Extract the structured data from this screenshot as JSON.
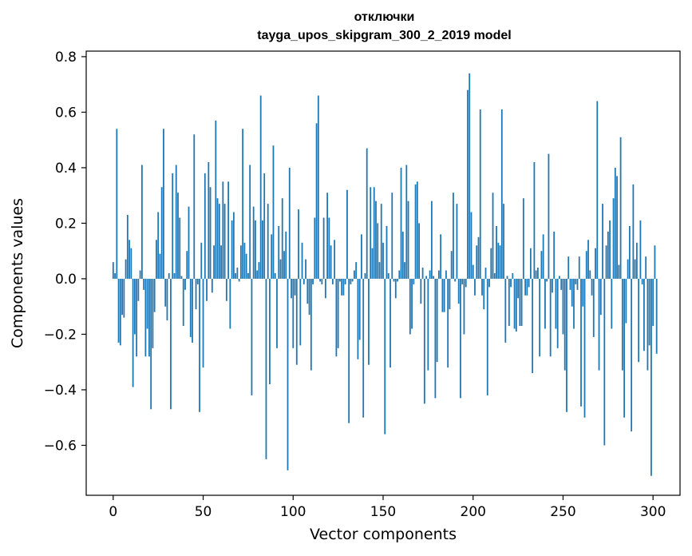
{
  "chart_data": {
    "type": "bar",
    "title": [
      "отключки",
      "tayga_upos_skipgram_300_2_2019 model"
    ],
    "xlabel": "Vector components",
    "ylabel": "Components values",
    "xlim": [
      -15,
      315
    ],
    "ylim": [
      -0.78,
      0.82
    ],
    "xticks": [
      0,
      50,
      100,
      150,
      200,
      250,
      300
    ],
    "yticks": [
      -0.6,
      -0.4,
      -0.2,
      0.0,
      0.2,
      0.4,
      0.6,
      0.8
    ],
    "ytick_labels": [
      "−0.6",
      "−0.4",
      "−0.2",
      "0.0",
      "0.2",
      "0.4",
      "0.6",
      "0.8"
    ],
    "grid": false,
    "bar_color": "#1f77b4",
    "values": [
      0.06,
      0.02,
      0.54,
      -0.23,
      -0.24,
      -0.13,
      -0.14,
      0.07,
      0.23,
      0.14,
      0.11,
      -0.39,
      -0.2,
      -0.28,
      -0.08,
      0.03,
      0.41,
      -0.04,
      -0.28,
      -0.18,
      -0.28,
      -0.47,
      -0.25,
      -0.12,
      0.14,
      0.24,
      0.09,
      0.33,
      0.54,
      -0.1,
      -0.15,
      0.02,
      -0.47,
      0.38,
      0.02,
      0.41,
      0.31,
      0.22,
      0.01,
      -0.17,
      -0.04,
      0.1,
      0.26,
      -0.21,
      -0.23,
      0.52,
      -0.11,
      -0.02,
      -0.48,
      0.13,
      -0.32,
      0.38,
      -0.08,
      0.42,
      0.33,
      -0.05,
      0.12,
      0.57,
      0.29,
      0.27,
      0.12,
      0.35,
      0.27,
      -0.08,
      0.35,
      -0.18,
      0.21,
      0.24,
      0.02,
      0.04,
      -0.01,
      0.12,
      0.54,
      0.13,
      0.09,
      0.02,
      0.41,
      -0.42,
      0.26,
      0.21,
      0.03,
      0.06,
      0.66,
      0.21,
      0.38,
      -0.65,
      0.27,
      -0.38,
      0.16,
      0.48,
      0.02,
      -0.25,
      0.19,
      0.07,
      0.29,
      0.1,
      0.17,
      -0.69,
      0.4,
      -0.07,
      -0.25,
      -0.06,
      -0.31,
      0.25,
      -0.24,
      0.13,
      -0.02,
      0.07,
      -0.09,
      -0.13,
      -0.33,
      -0.02,
      0.22,
      0.56,
      0.66,
      -0.01,
      -0.02,
      0.22,
      -0.07,
      0.31,
      0.22,
      0.12,
      -0.02,
      0.14,
      -0.28,
      -0.25,
      -0.01,
      -0.06,
      -0.06,
      -0.02,
      0.32,
      -0.52,
      -0.02,
      -0.01,
      0.03,
      0.06,
      -0.29,
      -0.22,
      0.16,
      -0.5,
      0.02,
      0.47,
      -0.31,
      0.33,
      0.11,
      0.33,
      0.28,
      0.2,
      0.06,
      0.27,
      0.13,
      -0.56,
      0.19,
      0.02,
      -0.32,
      0.31,
      -0.01,
      -0.07,
      -0.01,
      0.03,
      0.4,
      0.17,
      0.06,
      0.41,
      0.28,
      -0.2,
      -0.18,
      -0.02,
      0.34,
      0.35,
      0.2,
      -0.09,
      0.04,
      -0.45,
      0.01,
      -0.33,
      0.03,
      0.28,
      0.01,
      -0.43,
      -0.3,
      0.03,
      0.16,
      -0.12,
      -0.12,
      0.03,
      -0.32,
      -0.11,
      0.1,
      0.31,
      -0.01,
      0.27,
      -0.09,
      -0.43,
      -0.02,
      -0.2,
      -0.03,
      0.68,
      0.74,
      0.24,
      0.05,
      -0.06,
      0.12,
      0.15,
      0.61,
      -0.06,
      -0.11,
      0.04,
      -0.42,
      -0.03,
      0.11,
      0.31,
      0.02,
      0.19,
      0.13,
      0.12,
      0.61,
      0.27,
      -0.23,
      0.01,
      -0.17,
      -0.03,
      0.02,
      -0.18,
      -0.19,
      -0.07,
      -0.17,
      -0.17,
      0.29,
      -0.06,
      -0.06,
      -0.03,
      0.11,
      -0.34,
      0.42,
      0.03,
      0.04,
      -0.28,
      0.1,
      0.16,
      -0.18,
      -0.01,
      0.45,
      -0.28,
      -0.05,
      0.17,
      -0.18,
      -0.25,
      0.01,
      -0.04,
      -0.2,
      -0.33,
      -0.48,
      0.08,
      -0.04,
      -0.1,
      -0.18,
      -0.02,
      -0.04,
      0.08,
      -0.46,
      -0.1,
      -0.5,
      0.1,
      0.14,
      0.03,
      -0.06,
      -0.21,
      0.11,
      0.64,
      -0.33,
      -0.13,
      0.27,
      -0.6,
      0.12,
      0.17,
      0.21,
      -0.18,
      0.29,
      0.4,
      0.37,
      0.05,
      0.51,
      -0.33,
      -0.5,
      -0.16,
      0.07,
      0.19,
      -0.55,
      0.34,
      0.07,
      0.13,
      -0.3,
      0.21,
      -0.02,
      -0.26,
      0.08,
      -0.33,
      -0.24,
      -0.71,
      -0.17,
      0.12,
      -0.27
    ]
  }
}
